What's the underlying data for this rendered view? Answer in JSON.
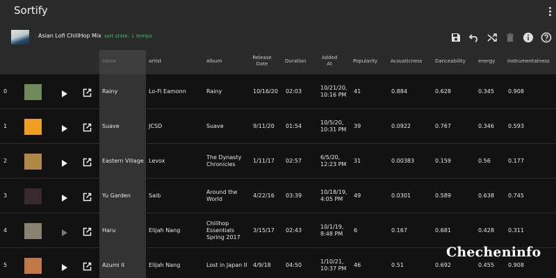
{
  "app": {
    "title": "Sortify"
  },
  "playlist": {
    "name": "Asian Lofi ChillHop Mix",
    "sort_state": "sort state: ↓ tempo"
  },
  "toolbar_icons": [
    "save-icon",
    "undo-icon",
    "shuffle-icon",
    "delete-icon",
    "info-icon",
    "help-icon"
  ],
  "columns": {
    "name": "name",
    "artist": "artist",
    "album": "Album",
    "release_date": "Release Date",
    "duration": "Duration",
    "added_at": "Added At",
    "popularity": "Popularity",
    "acousticness": "Acousticness",
    "danceability": "Danceability",
    "energy": "energy",
    "instrumentalness": "instrumentalness"
  },
  "tracks": [
    {
      "index": "0",
      "name": "Rainy",
      "artist": "Lo-Fi Eamonn",
      "album": "Rainy",
      "release_date": "10/16/20",
      "duration": "02:03",
      "added_at": "10/21/20, 10:16 PM",
      "popularity": "41",
      "acousticness": "0.884",
      "danceability": "0.628",
      "energy": "0.345",
      "instrumentalness": "0.908",
      "art_color": "#6f8a5a"
    },
    {
      "index": "1",
      "name": "Suave",
      "artist": "JCSD",
      "album": "Suave",
      "release_date": "9/11/20",
      "duration": "01:54",
      "added_at": "10/5/20, 10:31 PM",
      "popularity": "39",
      "acousticness": "0.0922",
      "danceability": "0.767",
      "energy": "0.346",
      "instrumentalness": "0.593",
      "art_color": "#f0a020"
    },
    {
      "index": "2",
      "name": "Eastern Village",
      "artist": "Levox",
      "album": "The Dynasty Chronicles",
      "release_date": "1/11/17",
      "duration": "02:57",
      "added_at": "6/5/20, 12:23 PM",
      "popularity": "31",
      "acousticness": "0.00383",
      "danceability": "0.159",
      "energy": "0.56",
      "instrumentalness": "0.177",
      "art_color": "#b08848"
    },
    {
      "index": "3",
      "name": "Yu Garden",
      "artist": "Saib",
      "album": "Around the World",
      "release_date": "4/22/16",
      "duration": "03:39",
      "added_at": "10/18/19, 4:05 PM",
      "popularity": "49",
      "acousticness": "0.0301",
      "danceability": "0.589",
      "energy": "0.638",
      "instrumentalness": "0.745",
      "art_color": "#3a2a30"
    },
    {
      "index": "4",
      "name": "Haru",
      "artist": "Elijah Nang",
      "album": "Chillhop Essentials Spring 2017",
      "release_date": "3/15/17",
      "duration": "02:43",
      "added_at": "10/1/19, 8:48 PM",
      "popularity": "6",
      "acousticness": "0.167",
      "danceability": "0.681",
      "energy": "0.428",
      "instrumentalness": "0.311",
      "art_color": "#8a8070"
    },
    {
      "index": "5",
      "name": "Azumi II",
      "artist": "Elijah Nang",
      "album": "Lost in Japan II",
      "release_date": "4/9/18",
      "duration": "04:50",
      "added_at": "1/10/21, 10:37 PM",
      "popularity": "46",
      "acousticness": "0.51",
      "danceability": "0.692",
      "energy": "0.455",
      "instrumentalness": "0.908",
      "art_color": "#c07848"
    }
  ],
  "watermark": "Checheninfo"
}
